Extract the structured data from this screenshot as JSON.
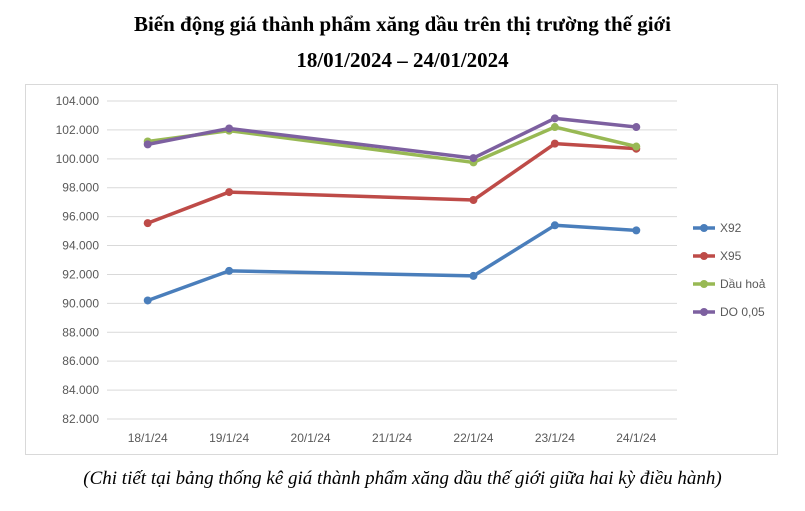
{
  "title_line1": "Biến động giá thành phẩm xăng dầu trên thị trường thế giới",
  "title_line2": "18/01/2024 – 24/01/2024",
  "caption": "(Chi tiết tại bảng thống kê giá thành phẩm xăng dầu thế giới giữa hai kỳ điều hành)",
  "chart_data": {
    "type": "line",
    "categories": [
      "18/1/24",
      "19/1/24",
      "20/1/24",
      "21/1/24",
      "22/1/24",
      "23/1/24",
      "24/1/24"
    ],
    "ylim": [
      82,
      104
    ],
    "yticks": [
      "82.000",
      "84.000",
      "86.000",
      "88.000",
      "90.000",
      "92.000",
      "94.000",
      "96.000",
      "98.000",
      "100.000",
      "102.000",
      "104.000"
    ],
    "grid": true,
    "legend": "right",
    "series": [
      {
        "name": "X92",
        "color": "#4a7ebb",
        "values": [
          90.2,
          92.25,
          null,
          null,
          91.9,
          95.4,
          95.05
        ]
      },
      {
        "name": "X95",
        "color": "#be4b48",
        "values": [
          95.55,
          97.7,
          null,
          null,
          97.15,
          101.05,
          100.7
        ]
      },
      {
        "name": "Dầu hoả",
        "color": "#98b954",
        "values": [
          101.2,
          101.95,
          null,
          null,
          99.75,
          102.2,
          100.85
        ]
      },
      {
        "name": "DO 0,05",
        "color": "#7d60a0",
        "values": [
          101.0,
          102.1,
          null,
          null,
          100.05,
          102.8,
          102.2
        ]
      }
    ]
  }
}
